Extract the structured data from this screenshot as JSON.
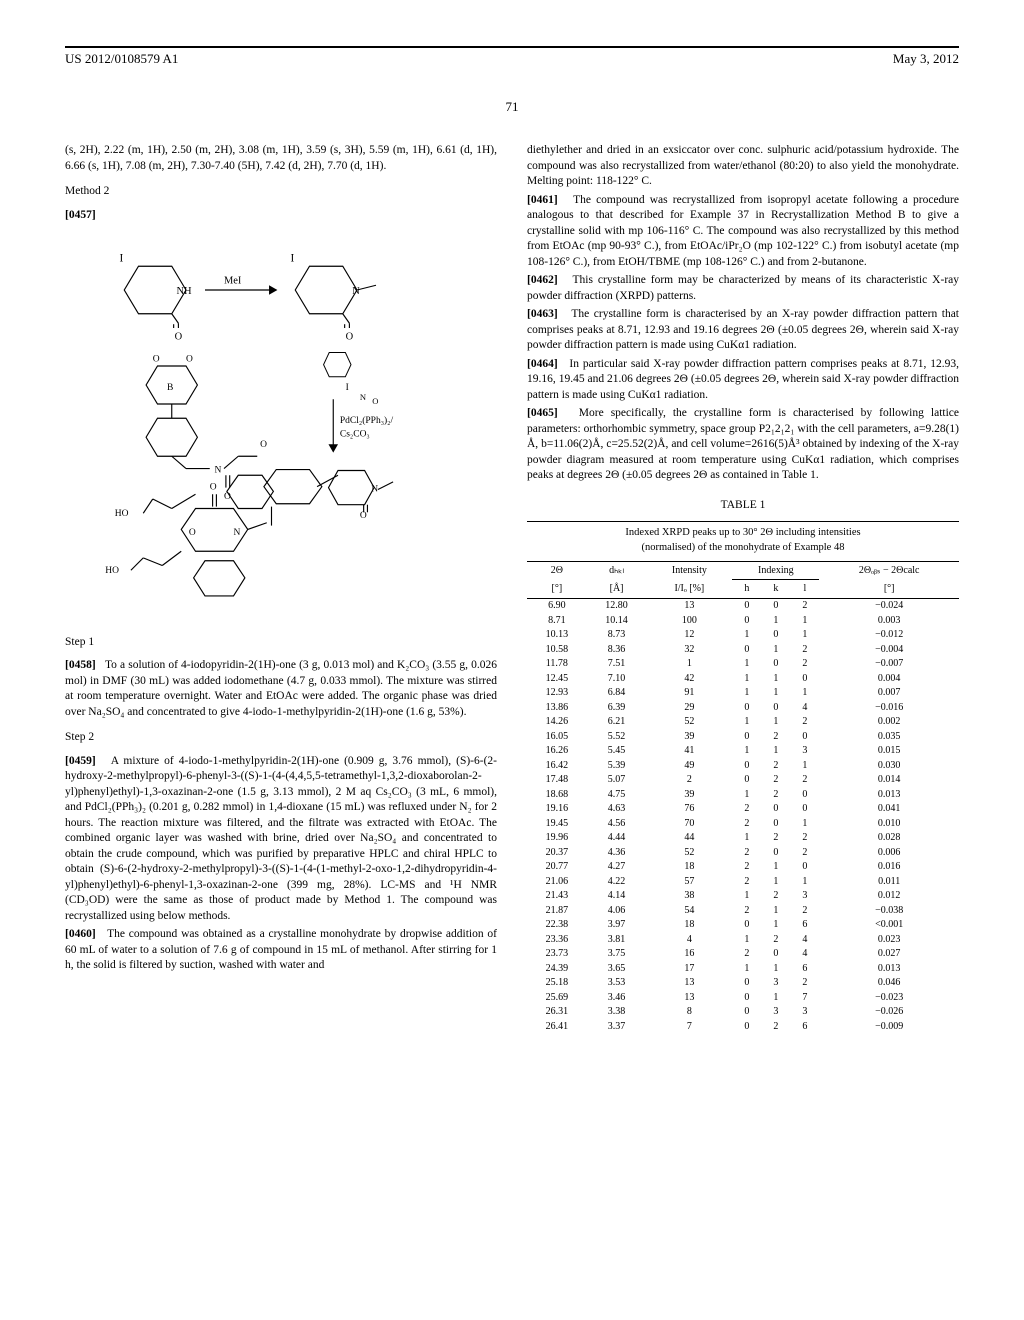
{
  "header": {
    "pub_number": "US 2012/0108579 A1",
    "date": "May 3, 2012"
  },
  "page_number": "71",
  "left_col": {
    "nmr_text": "(s, 2H), 2.22 (m, 1H), 2.50 (m, 2H), 3.08 (m, 1H), 3.59 (s, 3H), 5.59 (m, 1H), 6.61 (d, 1H), 6.66 (s, 1H), 7.08 (m, 2H), 7.30-7.40 (5H), 7.42 (d, 2H), 7.70 (d, 1H).",
    "method_label": "Method 2",
    "para_0457": "[0457]",
    "diagram_labels": {
      "mei": "MeI",
      "pdcl2": "PdCl₂(PPh₃)₂/",
      "cs2co3": "Cs₂CO₃"
    },
    "step1_label": "Step 1",
    "para_0458_num": "[0458]",
    "para_0458_text": "To a solution of 4-iodopyridin-2(1H)-one (3 g, 0.013 mol) and K₂CO₃ (3.55 g, 0.026 mol) in DMF (30 mL) was added iodomethane (4.7 g, 0.033 mmol). The mixture was stirred at room temperature overnight. Water and EtOAc were added. The organic phase was dried over Na₂SO₄ and concentrated to give 4-iodo-1-methylpyridin-2(1H)-one (1.6 g, 53%).",
    "step2_label": "Step 2",
    "para_0459_num": "[0459]",
    "para_0459_text": "A mixture of 4-iodo-1-methylpyridin-2(1H)-one (0.909 g, 3.76 mmol), (S)-6-(2-hydroxy-2-methylpropyl)-6-phenyl-3-((S)-1-(4-(4,4,5,5-tetramethyl-1,3,2-dioxaborolan-2-yl)phenyl)ethyl)-1,3-oxazinan-2-one (1.5 g, 3.13 mmol), 2 M aq Cs₂CO₃ (3 mL, 6 mmol), and PdCl₂(PPh₃)₂ (0.201 g, 0.282 mmol) in 1,4-dioxane (15 mL) was refluxed under N₂ for 2 hours. The reaction mixture was filtered, and the filtrate was extracted with EtOAc. The combined organic layer was washed with brine, dried over Na₂SO₄ and concentrated to obtain the crude compound, which was purified by preparative HPLC and chiral HPLC to obtain (S)-6-(2-hydroxy-2-methylpropyl)-3-((S)-1-(4-(1-methyl-2-oxo-1,2-dihydropyridin-4-yl)phenyl)ethyl)-6-phenyl-1,3-oxazinan-2-one (399 mg, 28%). LC-MS and ¹H NMR (CD₃OD) were the same as those of product made by Method 1. The compound was recrystallized using below methods.",
    "para_0460_num": "[0460]",
    "para_0460_text": "The compound was obtained as a crystalline monohydrate by dropwise addition of 60 mL of water to a solution of 7.6 g of compound in 15 mL of methanol. After stirring for 1 h, the solid is filtered by suction, washed with water and"
  },
  "right_col": {
    "para_cont": "diethylether and dried in an exsiccator over conc. sulphuric acid/potassium hydroxide. The compound was also recrystallized from water/ethanol (80:20) to also yield the monohydrate. Melting point: 118-122° C.",
    "para_0461_num": "[0461]",
    "para_0461_text": "The compound was recrystallized from isopropyl acetate following a procedure analogous to that described for Example 37 in Recrystallization Method B to give a crystalline solid with mp 106-116° C. The compound was also recrystallized by this method from EtOAc (mp 90-93° C.), from EtOAc/iPr₂O (mp 102-122° C.) from isobutyl acetate (mp 108-126° C.), from EtOH/TBME (mp 108-126° C.) and from 2-butanone.",
    "para_0462_num": "[0462]",
    "para_0462_text": "This crystalline form may be characterized by means of its characteristic X-ray powder diffraction (XRPD) patterns.",
    "para_0463_num": "[0463]",
    "para_0463_text": "The crystalline form is characterised by an X-ray powder diffraction pattern that comprises peaks at 8.71, 12.93 and 19.16 degrees 2Θ (±0.05 degrees 2Θ, wherein said X-ray powder diffraction pattern is made using CuKα1 radiation.",
    "para_0464_num": "[0464]",
    "para_0464_text": "In particular said X-ray powder diffraction pattern comprises peaks at 8.71, 12.93, 19.16, 19.45 and 21.06 degrees 2Θ (±0.05 degrees 2Θ, wherein said X-ray powder diffraction pattern is made using CuKα1 radiation.",
    "para_0465_num": "[0465]",
    "para_0465_text": "More specifically, the crystalline form is characterised by following lattice parameters: orthorhombic symmetry, space group P2₁2₁2₁ with the cell parameters, a=9.28(1) Å, b=11.06(2)Å, c=25.52(2)Å, and cell volume=2616(5)Å³ obtained by indexing of the X-ray powder diagram measured at room temperature using CuKα1 radiation, which comprises peaks at degrees 2Θ (±0.05 degrees 2Θ as contained in Table 1."
  },
  "table": {
    "caption": "TABLE 1",
    "subtitle_line1": "Indexed XRPD peaks up to 30° 2Θ including intensities",
    "subtitle_line2": "(normalised) of the monohydrate of Example 48",
    "headers_row1": {
      "col1": "2Θ",
      "col2": "dₕₖₗ",
      "col3": "Intensity",
      "col_indexing": "Indexing",
      "col7": "2Θₒᵦₛ − 2Θcalc"
    },
    "headers_row2": {
      "col1": "[°]",
      "col2": "[Å]",
      "col3": "I/Iₒ [%]",
      "col4": "h",
      "col5": "k",
      "col6": "l",
      "col7": "[°]"
    },
    "rows": [
      [
        "6.90",
        "12.80",
        "13",
        "0",
        "0",
        "2",
        "−0.024"
      ],
      [
        "8.71",
        "10.14",
        "100",
        "0",
        "1",
        "1",
        "0.003"
      ],
      [
        "10.13",
        "8.73",
        "12",
        "1",
        "0",
        "1",
        "−0.012"
      ],
      [
        "10.58",
        "8.36",
        "32",
        "0",
        "1",
        "2",
        "−0.004"
      ],
      [
        "11.78",
        "7.51",
        "1",
        "1",
        "0",
        "2",
        "−0.007"
      ],
      [
        "12.45",
        "7.10",
        "42",
        "1",
        "1",
        "0",
        "0.004"
      ],
      [
        "12.93",
        "6.84",
        "91",
        "1",
        "1",
        "1",
        "0.007"
      ],
      [
        "13.86",
        "6.39",
        "29",
        "0",
        "0",
        "4",
        "−0.016"
      ],
      [
        "14.26",
        "6.21",
        "52",
        "1",
        "1",
        "2",
        "0.002"
      ],
      [
        "16.05",
        "5.52",
        "39",
        "0",
        "2",
        "0",
        "0.035"
      ],
      [
        "16.26",
        "5.45",
        "41",
        "1",
        "1",
        "3",
        "0.015"
      ],
      [
        "16.42",
        "5.39",
        "49",
        "0",
        "2",
        "1",
        "0.030"
      ],
      [
        "17.48",
        "5.07",
        "2",
        "0",
        "2",
        "2",
        "0.014"
      ],
      [
        "18.68",
        "4.75",
        "39",
        "1",
        "2",
        "0",
        "0.013"
      ],
      [
        "19.16",
        "4.63",
        "76",
        "2",
        "0",
        "0",
        "0.041"
      ],
      [
        "19.45",
        "4.56",
        "70",
        "2",
        "0",
        "1",
        "0.010"
      ],
      [
        "19.96",
        "4.44",
        "44",
        "1",
        "2",
        "2",
        "0.028"
      ],
      [
        "20.37",
        "4.36",
        "52",
        "2",
        "0",
        "2",
        "0.006"
      ],
      [
        "20.77",
        "4.27",
        "18",
        "2",
        "1",
        "0",
        "0.016"
      ],
      [
        "21.06",
        "4.22",
        "57",
        "2",
        "1",
        "1",
        "0.011"
      ],
      [
        "21.43",
        "4.14",
        "38",
        "1",
        "2",
        "3",
        "0.012"
      ],
      [
        "21.87",
        "4.06",
        "54",
        "2",
        "1",
        "2",
        "−0.038"
      ],
      [
        "22.38",
        "3.97",
        "18",
        "0",
        "1",
        "6",
        "<0.001"
      ],
      [
        "23.36",
        "3.81",
        "4",
        "1",
        "2",
        "4",
        "0.023"
      ],
      [
        "23.73",
        "3.75",
        "16",
        "2",
        "0",
        "4",
        "0.027"
      ],
      [
        "24.39",
        "3.65",
        "17",
        "1",
        "1",
        "6",
        "0.013"
      ],
      [
        "25.18",
        "3.53",
        "13",
        "0",
        "3",
        "2",
        "0.046"
      ],
      [
        "25.69",
        "3.46",
        "13",
        "0",
        "1",
        "7",
        "−0.023"
      ],
      [
        "26.31",
        "3.38",
        "8",
        "0",
        "3",
        "3",
        "−0.026"
      ],
      [
        "26.41",
        "3.37",
        "7",
        "0",
        "2",
        "6",
        "−0.009"
      ]
    ]
  }
}
